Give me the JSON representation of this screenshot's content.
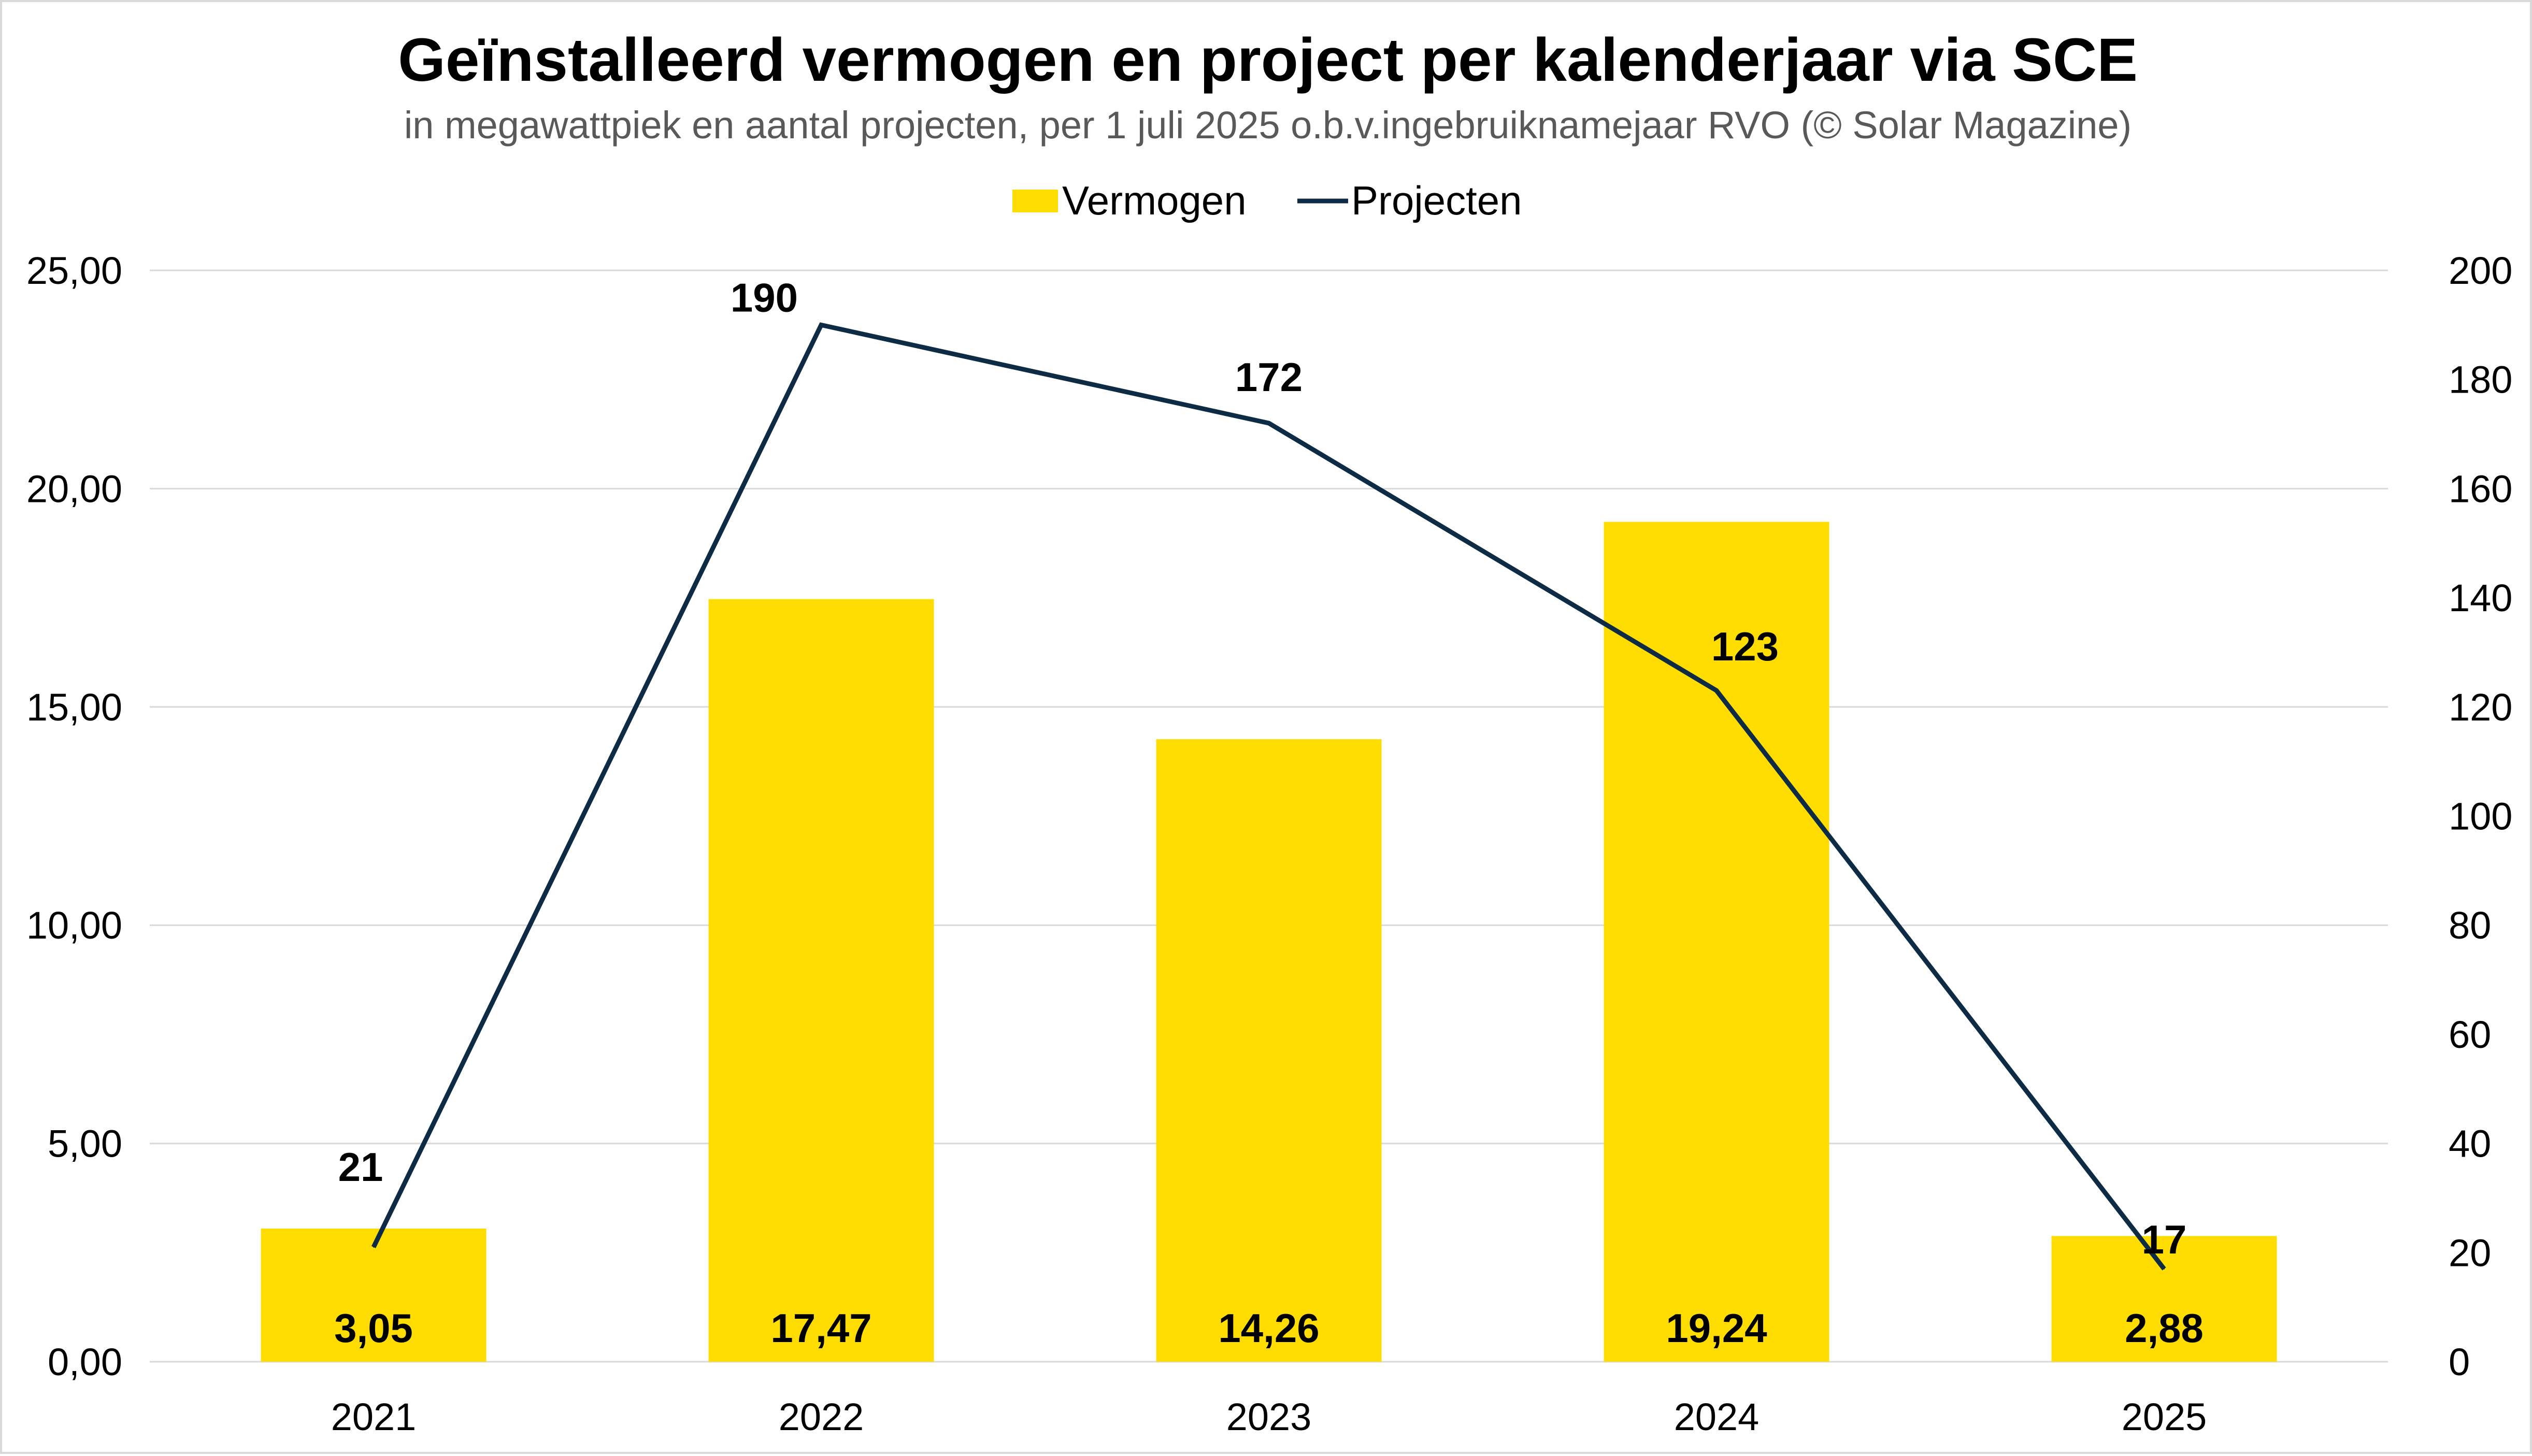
{
  "chart_data": {
    "type": "bar",
    "title": "Geïnstalleerd vermogen en project per kalenderjaar via SCE",
    "subtitle": "in megawattpiek en aantal projecten, per 1 juli 2025 o.b.v.ingebruiknamejaar RVO (© Solar Magazine)",
    "categories": [
      "2021",
      "2022",
      "2023",
      "2024",
      "2025"
    ],
    "series": [
      {
        "name": "Vermogen",
        "type": "bar",
        "axis": "left",
        "color": "#FFDD00",
        "values": [
          3.05,
          17.47,
          14.26,
          19.24,
          2.88
        ],
        "labels": [
          "3,05",
          "17,47",
          "14,26",
          "19,24",
          "2,88"
        ]
      },
      {
        "name": "Projecten",
        "type": "line",
        "axis": "right",
        "color": "#0D2B45",
        "values": [
          21,
          190,
          172,
          123,
          17
        ],
        "labels": [
          "21",
          "190",
          "172",
          "123",
          "17"
        ]
      }
    ],
    "y_left": {
      "min": 0,
      "max": 25,
      "step": 5,
      "tick_labels": [
        "0,00",
        "5,00",
        "10,00",
        "15,00",
        "20,00",
        "25,00"
      ]
    },
    "y_right": {
      "min": 0,
      "max": 200,
      "step": 20,
      "tick_labels": [
        "0",
        "20",
        "40",
        "60",
        "80",
        "100",
        "120",
        "140",
        "160",
        "180",
        "200"
      ]
    },
    "grid": true,
    "legend_position": "top-center",
    "gridline_color": "#D9D9D9",
    "frame_color": "#D9D9D9"
  }
}
